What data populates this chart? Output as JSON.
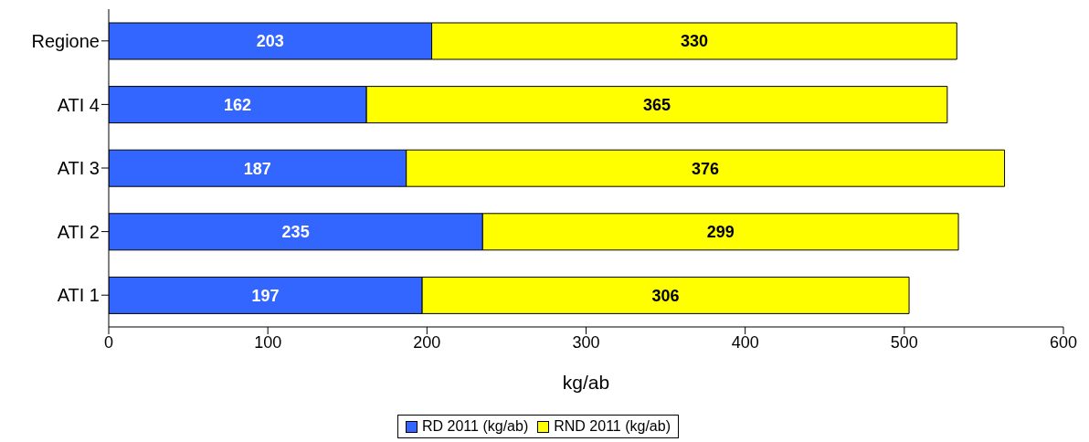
{
  "chart_data": {
    "type": "bar",
    "orientation": "horizontal",
    "stacked": true,
    "xlabel": "kg/ab",
    "categories": [
      "Regione",
      "ATI 4",
      "ATI 3",
      "ATI 2",
      "ATI 1"
    ],
    "series": [
      {
        "name": "RD 2011 (kg/ab)",
        "color": "#3366ff",
        "values": [
          203,
          162,
          187,
          235,
          197
        ]
      },
      {
        "name": "RND 2011 (kg/ab)",
        "color": "#ffff00",
        "values": [
          330,
          365,
          376,
          299,
          306
        ]
      }
    ],
    "xlim": [
      0,
      600
    ],
    "xticks": [
      0,
      100,
      200,
      300,
      400,
      500,
      600
    ],
    "data_labels": true,
    "grid": false,
    "legend": "bottom"
  }
}
